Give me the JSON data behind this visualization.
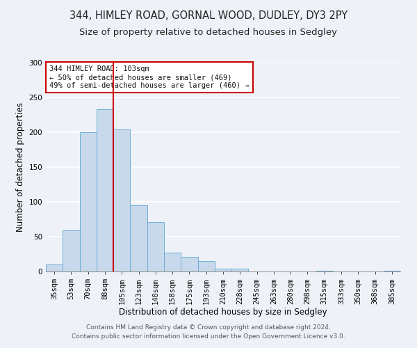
{
  "title1": "344, HIMLEY ROAD, GORNAL WOOD, DUDLEY, DY3 2PY",
  "title2": "Size of property relative to detached houses in Sedgley",
  "xlabel": "Distribution of detached houses by size in Sedgley",
  "ylabel": "Number of detached properties",
  "bar_labels": [
    "35sqm",
    "53sqm",
    "70sqm",
    "88sqm",
    "105sqm",
    "123sqm",
    "140sqm",
    "158sqm",
    "175sqm",
    "193sqm",
    "210sqm",
    "228sqm",
    "245sqm",
    "263sqm",
    "280sqm",
    "298sqm",
    "315sqm",
    "333sqm",
    "350sqm",
    "368sqm",
    "385sqm"
  ],
  "bar_values": [
    10,
    59,
    200,
    233,
    204,
    95,
    71,
    27,
    21,
    15,
    4,
    4,
    0,
    0,
    0,
    0,
    1,
    0,
    0,
    0,
    1
  ],
  "bar_color": "#c8d9ec",
  "bar_edge_color": "#6aacd4",
  "ylim": [
    0,
    300
  ],
  "yticks": [
    0,
    50,
    100,
    150,
    200,
    250,
    300
  ],
  "vline_index": 4,
  "vline_color": "#cc0000",
  "annotation_lines": [
    "344 HIMLEY ROAD: 103sqm",
    "← 50% of detached houses are smaller (469)",
    "49% of semi-detached houses are larger (460) →"
  ],
  "footer1": "Contains HM Land Registry data © Crown copyright and database right 2024.",
  "footer2": "Contains public sector information licensed under the Open Government Licence v3.0.",
  "background_color": "#eef2f8",
  "plot_background": "#eef2f8",
  "grid_color": "#ffffff",
  "title_fontsize": 10.5,
  "subtitle_fontsize": 9.5,
  "axis_label_fontsize": 8.5,
  "tick_fontsize": 7.5,
  "footer_fontsize": 6.5,
  "ann_fontsize": 7.5
}
